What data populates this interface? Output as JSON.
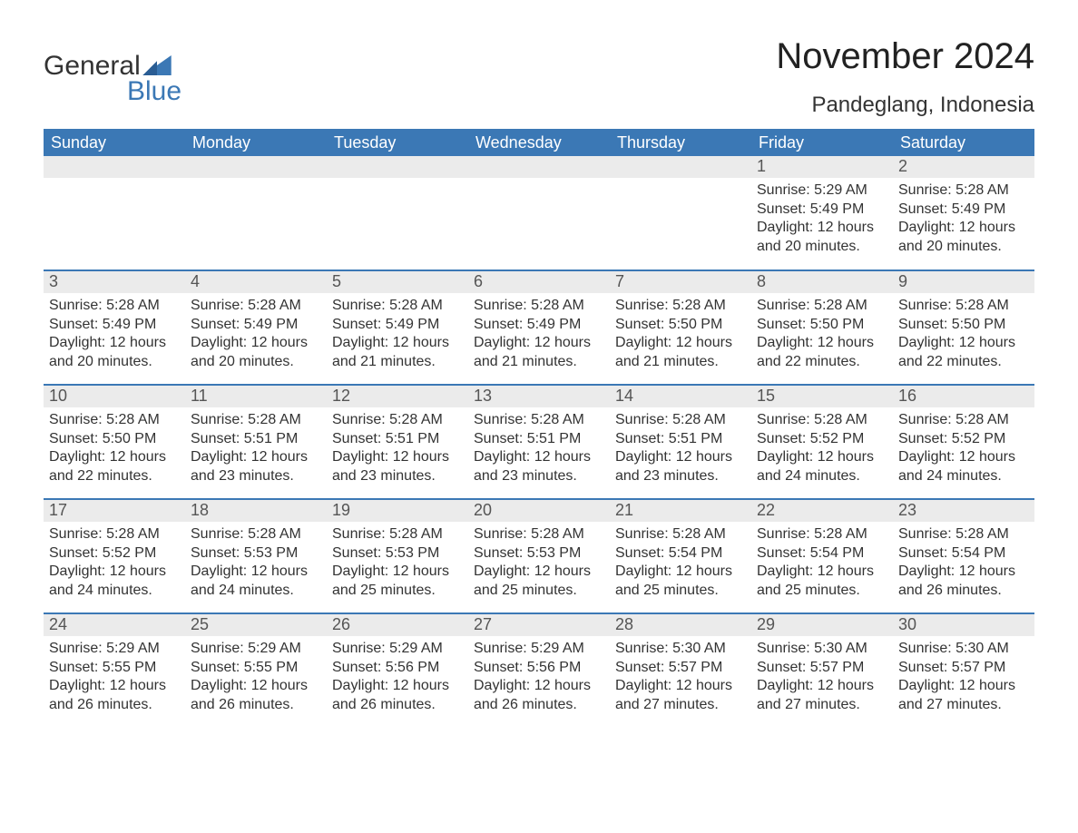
{
  "brand": {
    "line1": "General",
    "line2": "Blue",
    "text_color": "#333333",
    "blue_color": "#3b78b5"
  },
  "title": "November 2024",
  "location": "Pandeglang, Indonesia",
  "colors": {
    "header_bg": "#3b78b5",
    "header_text": "#ffffff",
    "daynum_bg": "#ebebeb",
    "daynum_text": "#555555",
    "body_text": "#333333",
    "row_border": "#3b78b5",
    "page_bg": "#ffffff"
  },
  "typography": {
    "title_fontsize": 40,
    "location_fontsize": 24,
    "header_fontsize": 18,
    "daynum_fontsize": 18,
    "body_fontsize": 16
  },
  "weekdays": [
    "Sunday",
    "Monday",
    "Tuesday",
    "Wednesday",
    "Thursday",
    "Friday",
    "Saturday"
  ],
  "labels": {
    "sunrise": "Sunrise:",
    "sunset": "Sunset:",
    "daylight": "Daylight:"
  },
  "weeks": [
    [
      null,
      null,
      null,
      null,
      null,
      {
        "day": "1",
        "sunrise": "5:29 AM",
        "sunset": "5:49 PM",
        "daylight": "12 hours and 20 minutes."
      },
      {
        "day": "2",
        "sunrise": "5:28 AM",
        "sunset": "5:49 PM",
        "daylight": "12 hours and 20 minutes."
      }
    ],
    [
      {
        "day": "3",
        "sunrise": "5:28 AM",
        "sunset": "5:49 PM",
        "daylight": "12 hours and 20 minutes."
      },
      {
        "day": "4",
        "sunrise": "5:28 AM",
        "sunset": "5:49 PM",
        "daylight": "12 hours and 20 minutes."
      },
      {
        "day": "5",
        "sunrise": "5:28 AM",
        "sunset": "5:49 PM",
        "daylight": "12 hours and 21 minutes."
      },
      {
        "day": "6",
        "sunrise": "5:28 AM",
        "sunset": "5:49 PM",
        "daylight": "12 hours and 21 minutes."
      },
      {
        "day": "7",
        "sunrise": "5:28 AM",
        "sunset": "5:50 PM",
        "daylight": "12 hours and 21 minutes."
      },
      {
        "day": "8",
        "sunrise": "5:28 AM",
        "sunset": "5:50 PM",
        "daylight": "12 hours and 22 minutes."
      },
      {
        "day": "9",
        "sunrise": "5:28 AM",
        "sunset": "5:50 PM",
        "daylight": "12 hours and 22 minutes."
      }
    ],
    [
      {
        "day": "10",
        "sunrise": "5:28 AM",
        "sunset": "5:50 PM",
        "daylight": "12 hours and 22 minutes."
      },
      {
        "day": "11",
        "sunrise": "5:28 AM",
        "sunset": "5:51 PM",
        "daylight": "12 hours and 23 minutes."
      },
      {
        "day": "12",
        "sunrise": "5:28 AM",
        "sunset": "5:51 PM",
        "daylight": "12 hours and 23 minutes."
      },
      {
        "day": "13",
        "sunrise": "5:28 AM",
        "sunset": "5:51 PM",
        "daylight": "12 hours and 23 minutes."
      },
      {
        "day": "14",
        "sunrise": "5:28 AM",
        "sunset": "5:51 PM",
        "daylight": "12 hours and 23 minutes."
      },
      {
        "day": "15",
        "sunrise": "5:28 AM",
        "sunset": "5:52 PM",
        "daylight": "12 hours and 24 minutes."
      },
      {
        "day": "16",
        "sunrise": "5:28 AM",
        "sunset": "5:52 PM",
        "daylight": "12 hours and 24 minutes."
      }
    ],
    [
      {
        "day": "17",
        "sunrise": "5:28 AM",
        "sunset": "5:52 PM",
        "daylight": "12 hours and 24 minutes."
      },
      {
        "day": "18",
        "sunrise": "5:28 AM",
        "sunset": "5:53 PM",
        "daylight": "12 hours and 24 minutes."
      },
      {
        "day": "19",
        "sunrise": "5:28 AM",
        "sunset": "5:53 PM",
        "daylight": "12 hours and 25 minutes."
      },
      {
        "day": "20",
        "sunrise": "5:28 AM",
        "sunset": "5:53 PM",
        "daylight": "12 hours and 25 minutes."
      },
      {
        "day": "21",
        "sunrise": "5:28 AM",
        "sunset": "5:54 PM",
        "daylight": "12 hours and 25 minutes."
      },
      {
        "day": "22",
        "sunrise": "5:28 AM",
        "sunset": "5:54 PM",
        "daylight": "12 hours and 25 minutes."
      },
      {
        "day": "23",
        "sunrise": "5:28 AM",
        "sunset": "5:54 PM",
        "daylight": "12 hours and 26 minutes."
      }
    ],
    [
      {
        "day": "24",
        "sunrise": "5:29 AM",
        "sunset": "5:55 PM",
        "daylight": "12 hours and 26 minutes."
      },
      {
        "day": "25",
        "sunrise": "5:29 AM",
        "sunset": "5:55 PM",
        "daylight": "12 hours and 26 minutes."
      },
      {
        "day": "26",
        "sunrise": "5:29 AM",
        "sunset": "5:56 PM",
        "daylight": "12 hours and 26 minutes."
      },
      {
        "day": "27",
        "sunrise": "5:29 AM",
        "sunset": "5:56 PM",
        "daylight": "12 hours and 26 minutes."
      },
      {
        "day": "28",
        "sunrise": "5:30 AM",
        "sunset": "5:57 PM",
        "daylight": "12 hours and 27 minutes."
      },
      {
        "day": "29",
        "sunrise": "5:30 AM",
        "sunset": "5:57 PM",
        "daylight": "12 hours and 27 minutes."
      },
      {
        "day": "30",
        "sunrise": "5:30 AM",
        "sunset": "5:57 PM",
        "daylight": "12 hours and 27 minutes."
      }
    ]
  ]
}
